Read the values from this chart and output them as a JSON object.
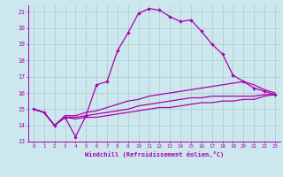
{
  "xlabel": "Windchill (Refroidissement éolien,°C)",
  "bg_color": "#cce8ee",
  "grid_color": "#aacccc",
  "line_color": "#aa00aa",
  "xmin": 0,
  "xmax": 23,
  "ymin": 13,
  "ymax": 21,
  "x": [
    0,
    1,
    2,
    3,
    4,
    5,
    6,
    7,
    8,
    9,
    10,
    11,
    12,
    13,
    14,
    15,
    16,
    17,
    18,
    19,
    20,
    21,
    22,
    23
  ],
  "line1": [
    15.0,
    14.8,
    14.0,
    14.5,
    13.3,
    14.6,
    16.5,
    16.7,
    18.6,
    19.7,
    20.9,
    21.2,
    21.1,
    20.7,
    20.4,
    20.5,
    19.8,
    19.0,
    18.4,
    17.1,
    16.7,
    16.3,
    16.1,
    15.9
  ],
  "line2": [
    15.0,
    14.8,
    14.0,
    14.6,
    14.6,
    14.8,
    14.9,
    15.1,
    15.3,
    15.5,
    15.6,
    15.8,
    15.9,
    16.0,
    16.1,
    16.2,
    16.3,
    16.4,
    16.5,
    16.6,
    16.7,
    16.5,
    16.2,
    16.0
  ],
  "line3": [
    15.0,
    14.8,
    14.0,
    14.5,
    14.5,
    14.6,
    14.7,
    14.8,
    14.9,
    15.0,
    15.2,
    15.3,
    15.4,
    15.5,
    15.6,
    15.7,
    15.7,
    15.8,
    15.8,
    15.8,
    15.8,
    15.8,
    15.9,
    15.9
  ],
  "line4": [
    15.0,
    14.8,
    14.0,
    14.5,
    14.4,
    14.5,
    14.5,
    14.6,
    14.7,
    14.8,
    14.9,
    15.0,
    15.1,
    15.1,
    15.2,
    15.3,
    15.4,
    15.4,
    15.5,
    15.5,
    15.6,
    15.6,
    15.8,
    15.9
  ]
}
